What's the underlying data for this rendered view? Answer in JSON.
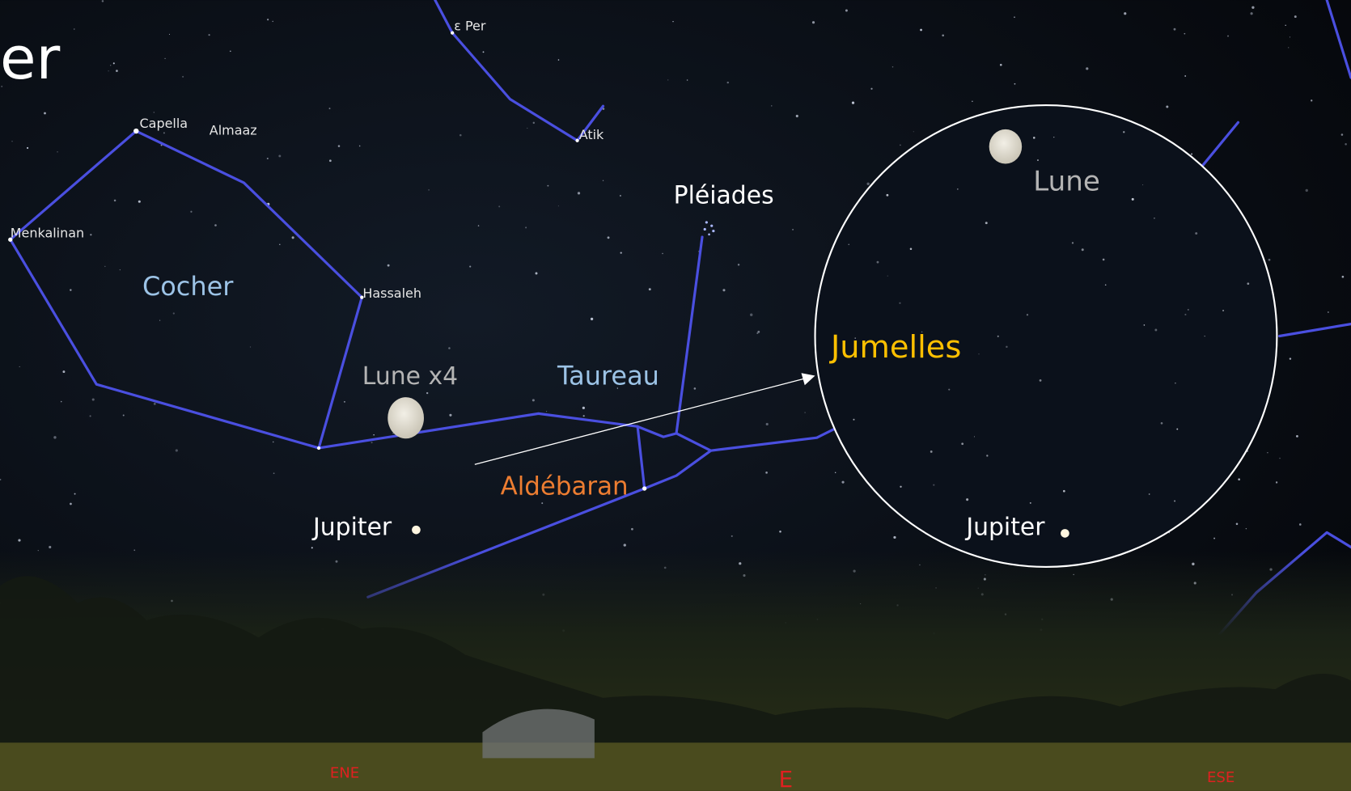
{
  "title": "er",
  "stars": {
    "eps_per": "ε Per",
    "atik": "Atik",
    "capella": "Capella",
    "almaaz": "Almaaz",
    "menkalinan": "Menkalinan",
    "hassaleh": "Hassaleh"
  },
  "labels": {
    "pleiades": "Pléiades",
    "cocher": "Cocher",
    "taureau": "Taureau",
    "lune_x4": "Lune x4",
    "aldebaran": "Aldébaran",
    "jupiter": "Jupiter"
  },
  "inset": {
    "title": "Jumelles",
    "lune": "Lune",
    "jupiter": "Jupiter"
  },
  "compass": {
    "ene": "ENE",
    "e": "E",
    "ese": "ESE"
  }
}
